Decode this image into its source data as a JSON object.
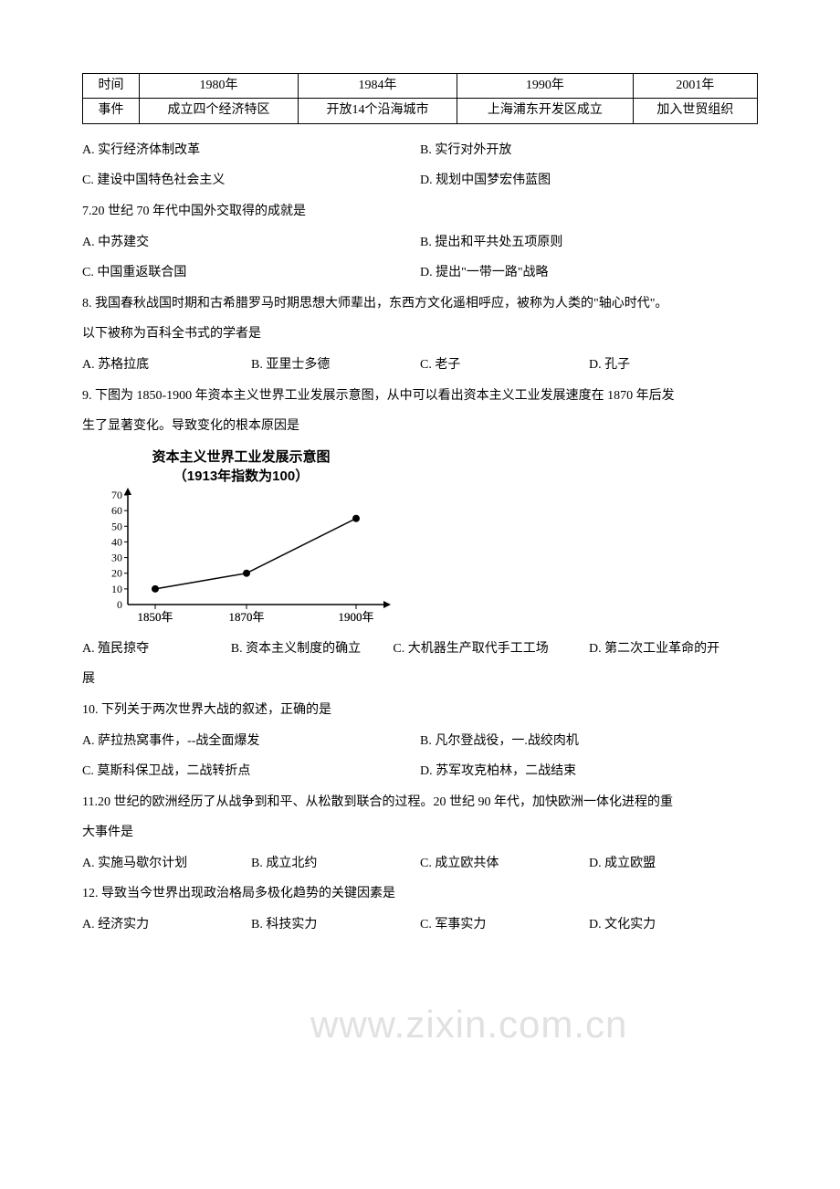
{
  "table": {
    "headers": [
      "时间",
      "1980年",
      "1984年",
      "1990年",
      "2001年"
    ],
    "row2": [
      "事件",
      "成立四个经济特区",
      "开放14个沿海城市",
      "上海浦东开发区成立",
      "加入世贸组织"
    ]
  },
  "q6": {
    "optA": "A. 实行经济体制改革",
    "optB": "B. 实行对外开放",
    "optC": "C. 建设中国特色社会主义",
    "optD": "D. 规划中国梦宏伟蓝图"
  },
  "q7": {
    "stem": "7.20 世纪 70 年代中国外交取得的成就是",
    "optA": "A. 中苏建交",
    "optB": "B. 提出和平共处五项原则",
    "optC": "C. 中国重返联合国",
    "optD": "D. 提出\"一带一路\"战略"
  },
  "q8": {
    "stem1": "8. 我国春秋战国时期和古希腊罗马时期思想大师辈出，东西方文化遥相呼应，被称为人类的\"轴心时代\"。",
    "stem2": "以下被称为百科全书式的学者是",
    "optA": "A. 苏格拉底",
    "optB": "B. 亚里士多德",
    "optC": "C. 老子",
    "optD": "D. 孔子"
  },
  "q9": {
    "stem1": "9. 下图为 1850-1900 年资本主义世界工业发展示意图，从中可以看出资本主义工业发展速度在 1870 年后发",
    "stem2": "生了显著变化。导致变化的根本原因是",
    "optA": "A. 殖民掠夺",
    "optB": "B. 资本主义制度的确立",
    "optC": "C. 大机器生产取代手工工场",
    "optD": "D. 第二次工业革命的开",
    "optD2": "展"
  },
  "chart": {
    "title1": "资本主义世界工业发展示意图",
    "title2": "（1913年指数为100）",
    "ylabels": [
      "70",
      "60",
      "50",
      "40",
      "30",
      "20",
      "10",
      "0"
    ],
    "xlabels": [
      "1850年",
      "1870年",
      "1900年"
    ],
    "points": [
      {
        "x": 0,
        "y": 10
      },
      {
        "x": 1,
        "y": 20
      },
      {
        "x": 2,
        "y": 55
      }
    ],
    "axis_color": "#000000",
    "line_color": "#000000",
    "background": "#ffffff"
  },
  "q10": {
    "stem": "10. 下列关于两次世界大战的叙述，正确的是",
    "optA": "A. 萨拉热窝事件，--战全面爆发",
    "optB": "B. 凡尔登战役，一.战绞肉机",
    "optC": "C. 莫斯科保卫战，二战转折点",
    "optD": "D. 苏军攻克柏林，二战结束"
  },
  "q11": {
    "stem1": "11.20 世纪的欧洲经历了从战争到和平、从松散到联合的过程。20 世纪 90 年代，加快欧洲一体化进程的重",
    "stem2": "大事件是",
    "optA": "A. 实施马歇尔计划",
    "optB": "B. 成立北约",
    "optC": "C. 成立欧共体",
    "optD": "D. 成立欧盟"
  },
  "q12": {
    "stem": "12. 导致当今世界出现政治格局多极化趋势的关键因素是",
    "optA": "A. 经济实力",
    "optB": "B. 科技实力",
    "optC": "C. 军事实力",
    "optD": "D. 文化实力"
  },
  "watermark": "www.zixin.com.cn"
}
